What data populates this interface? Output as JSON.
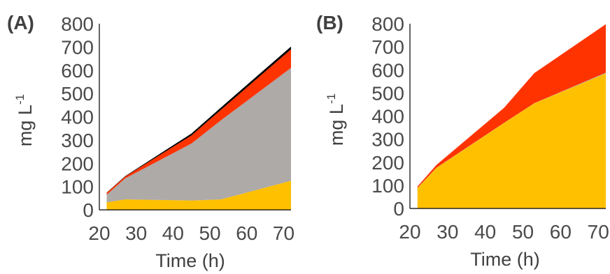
{
  "chart_data": [
    {
      "type": "area",
      "stacked": true,
      "panel_label": "(A)",
      "xlabel": "Time (h)",
      "ylabel_base": "mg L",
      "ylabel_sup": "-1",
      "xlim": [
        20,
        72
      ],
      "ylim": [
        0,
        800
      ],
      "xticks": [
        "20",
        "30",
        "40",
        "50",
        "60",
        "70"
      ],
      "yticks": [
        "0",
        "100",
        "200",
        "300",
        "400",
        "500",
        "600",
        "700",
        "800"
      ],
      "x": [
        22,
        27,
        45,
        53,
        72
      ],
      "series": [
        {
          "color": "#FFC000",
          "values": [
            32,
            45,
            40,
            45,
            125
          ]
        },
        {
          "color": "#ADAAA8",
          "values": [
            33,
            90,
            245,
            340,
            485
          ]
        },
        {
          "color": "#FF3300",
          "values": [
            8,
            8,
            35,
            45,
            80
          ]
        },
        {
          "color": "#000000",
          "values": [
            1,
            2,
            8,
            10,
            12
          ]
        }
      ]
    },
    {
      "type": "area",
      "stacked": true,
      "panel_label": "(B)",
      "xlabel": "Time (h)",
      "ylabel_base": "mg L",
      "ylabel_sup": "-1",
      "xlim": [
        20,
        72
      ],
      "ylim": [
        0,
        800
      ],
      "xticks": [
        "20",
        "30",
        "40",
        "50",
        "60",
        "70"
      ],
      "yticks": [
        "0",
        "100",
        "200",
        "300",
        "400",
        "500",
        "600",
        "700",
        "800"
      ],
      "x": [
        22,
        27,
        45,
        53,
        72
      ],
      "series": [
        {
          "color": "#FFC000",
          "values": [
            88,
            175,
            370,
            455,
            585
          ]
        },
        {
          "color": "#ADAAA8",
          "values": [
            1,
            1,
            1,
            1,
            3
          ]
        },
        {
          "color": "#FF3300",
          "values": [
            6,
            12,
            65,
            130,
            210
          ]
        }
      ]
    }
  ]
}
